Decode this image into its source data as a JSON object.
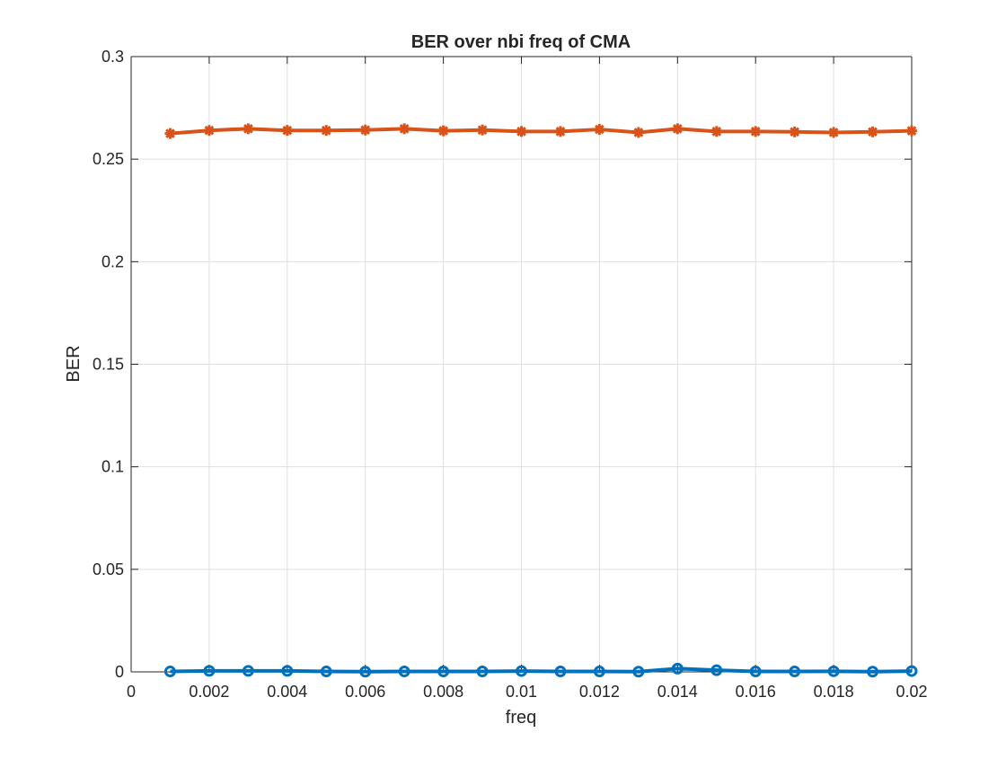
{
  "chart_data": {
    "type": "line",
    "title": "BER over nbi freq of CMA",
    "xlabel": "freq",
    "ylabel": "BER",
    "xlim": [
      0,
      0.02
    ],
    "ylim": [
      0,
      0.3
    ],
    "grid": true,
    "x": [
      0.001,
      0.002,
      0.003,
      0.004,
      0.005,
      0.006,
      0.007,
      0.008,
      0.009,
      0.01,
      0.011,
      0.012,
      0.013,
      0.014,
      0.015,
      0.016,
      0.017,
      0.018,
      0.019,
      0.02
    ],
    "x_ticks": [
      "0",
      "0.002",
      "0.004",
      "0.006",
      "0.008",
      "0.01",
      "0.012",
      "0.014",
      "0.016",
      "0.018",
      "0.02"
    ],
    "x_tick_values": [
      0,
      0.002,
      0.004,
      0.006,
      0.008,
      0.01,
      0.012,
      0.014,
      0.016,
      0.018,
      0.02
    ],
    "y_ticks": [
      "0",
      "0.05",
      "0.1",
      "0.15",
      "0.2",
      "0.25",
      "0.3"
    ],
    "y_tick_values": [
      0,
      0.05,
      0.1,
      0.15,
      0.2,
      0.25,
      0.3
    ],
    "series": [
      {
        "color": "#0072BD",
        "marker": "circle",
        "values": [
          0.0002,
          0.0005,
          0.0005,
          0.0005,
          0.0002,
          0.0001,
          0.0002,
          0.0002,
          0.0002,
          0.0004,
          0.0002,
          0.0002,
          0.0001,
          0.0016,
          0.0008,
          0.0002,
          0.0002,
          0.0003,
          0.0001,
          0.0004
        ]
      },
      {
        "color": "#D95319",
        "marker": "asterisk",
        "values": [
          0.2625,
          0.264,
          0.2648,
          0.264,
          0.264,
          0.2642,
          0.2648,
          0.2638,
          0.2642,
          0.2635,
          0.2635,
          0.2645,
          0.263,
          0.2648,
          0.2635,
          0.2635,
          0.2633,
          0.263,
          0.2633,
          0.2638
        ]
      }
    ]
  }
}
